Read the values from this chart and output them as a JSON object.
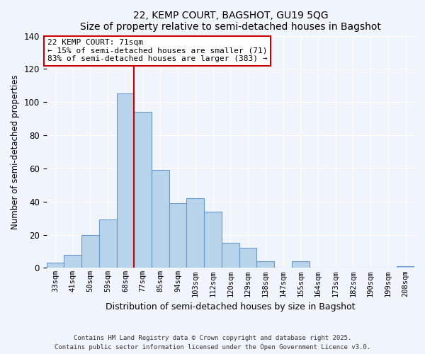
{
  "title": "22, KEMP COURT, BAGSHOT, GU19 5QG",
  "subtitle": "Size of property relative to semi-detached houses in Bagshot",
  "xlabel": "Distribution of semi-detached houses by size in Bagshot",
  "ylabel": "Number of semi-detached properties",
  "bar_labels": [
    "33sqm",
    "41sqm",
    "50sqm",
    "59sqm",
    "68sqm",
    "77sqm",
    "85sqm",
    "94sqm",
    "103sqm",
    "112sqm",
    "120sqm",
    "129sqm",
    "138sqm",
    "147sqm",
    "155sqm",
    "164sqm",
    "173sqm",
    "182sqm",
    "190sqm",
    "199sqm",
    "208sqm"
  ],
  "bar_values": [
    3,
    8,
    20,
    29,
    105,
    94,
    59,
    39,
    42,
    34,
    15,
    12,
    4,
    0,
    4,
    0,
    0,
    0,
    0,
    0,
    1
  ],
  "bar_color": "#b8d4ea",
  "bar_edge_color": "#6699cc",
  "vline_color": "#cc0000",
  "annotation_title": "22 KEMP COURT: 71sqm",
  "annotation_line1": "← 15% of semi-detached houses are smaller (71)",
  "annotation_line2": "83% of semi-detached houses are larger (383) →",
  "annotation_box_color": "#ffffff",
  "annotation_box_edge": "#cc0000",
  "ylim": [
    0,
    140
  ],
  "yticks": [
    0,
    20,
    40,
    60,
    80,
    100,
    120,
    140
  ],
  "footnote1": "Contains HM Land Registry data © Crown copyright and database right 2025.",
  "footnote2": "Contains public sector information licensed under the Open Government Licence v3.0.",
  "bg_color": "#f0f4fb"
}
